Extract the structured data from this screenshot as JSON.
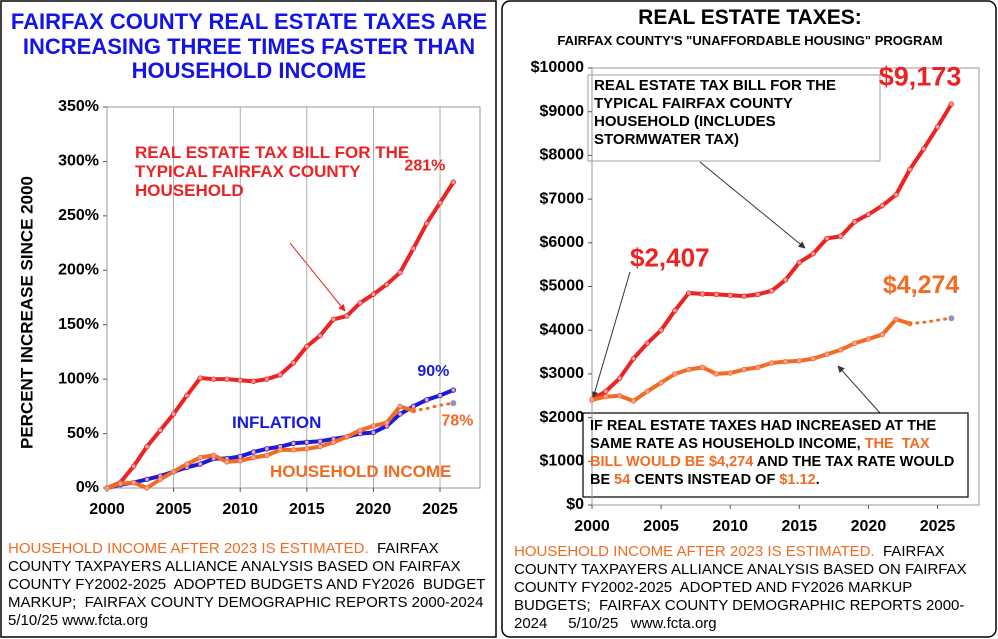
{
  "chart_data": [
    {
      "type": "line",
      "title": "FAIRFAX COUNTY REAL ESTATE TAXES ARE INCREASING THREE TIMES FASTER THAN HOUSEHOLD INCOME",
      "y_label": "PERCENT INCREASE SINCE 2000",
      "x": [
        2000,
        2001,
        2002,
        2003,
        2004,
        2005,
        2006,
        2007,
        2008,
        2009,
        2010,
        2011,
        2012,
        2013,
        2014,
        2015,
        2016,
        2017,
        2018,
        2019,
        2020,
        2021,
        2022,
        2023,
        2024,
        2025,
        2026
      ],
      "xlim": [
        2000,
        2028
      ],
      "xticks": [
        2000,
        2005,
        2010,
        2015,
        2020,
        2025
      ],
      "ylim": [
        0,
        350
      ],
      "yticks": [
        {
          "value": 0,
          "label": "0%"
        },
        {
          "value": 50,
          "label": "50%"
        },
        {
          "value": 100,
          "label": "100%"
        },
        {
          "value": 150,
          "label": "150%"
        },
        {
          "value": 200,
          "label": "200%"
        },
        {
          "value": 250,
          "label": "250%"
        },
        {
          "value": 300,
          "label": "300%"
        },
        {
          "value": 350,
          "label": "350%"
        }
      ],
      "grid": true,
      "series": [
        {
          "name": "REAL ESTATE TAX BILL FOR THE TYPICAL FAIRFAX COUNTY HOUSEHOLD",
          "color": "#ee2222",
          "values": [
            0,
            5,
            20,
            38,
            53,
            68,
            85,
            101,
            100,
            100,
            99,
            98,
            100,
            104,
            115,
            130,
            140,
            155,
            158,
            170,
            178,
            187,
            198,
            220,
            243,
            262,
            281
          ],
          "value_labels": [
            null,
            null,
            null,
            null,
            null,
            null,
            null,
            null,
            null,
            null,
            null,
            null,
            null,
            null,
            null,
            null,
            null,
            null,
            null,
            null,
            null,
            null,
            null,
            null,
            null,
            null,
            "281%"
          ]
        },
        {
          "name": "INFLATION",
          "color": "#1a1adc",
          "values": [
            0,
            3,
            5,
            8,
            11,
            15,
            19,
            22,
            27,
            27,
            29,
            33,
            36,
            38,
            41,
            42,
            43,
            45,
            47,
            50,
            51,
            57,
            68,
            75,
            81,
            85,
            90
          ],
          "value_labels": [
            null,
            null,
            null,
            null,
            null,
            null,
            null,
            null,
            null,
            null,
            null,
            null,
            null,
            null,
            null,
            null,
            null,
            null,
            null,
            null,
            null,
            null,
            null,
            null,
            null,
            null,
            "90%"
          ]
        },
        {
          "name": "HOUSEHOLD INCOME",
          "color": "#f26b21",
          "values": [
            0,
            4,
            5,
            0,
            8,
            15,
            22,
            28,
            30,
            24,
            25,
            28,
            30,
            35,
            35,
            36,
            38,
            42,
            47,
            53,
            57,
            60,
            75,
            71,
            null,
            null,
            null
          ]
        },
        {
          "color": "#f26b21",
          "dash": "dotted",
          "values": [
            null,
            null,
            null,
            null,
            null,
            null,
            null,
            null,
            null,
            null,
            null,
            null,
            null,
            null,
            null,
            null,
            null,
            null,
            null,
            null,
            null,
            null,
            null,
            71,
            73,
            76,
            78
          ],
          "value_labels": [
            null,
            null,
            null,
            null,
            null,
            null,
            null,
            null,
            null,
            null,
            null,
            null,
            null,
            null,
            null,
            null,
            null,
            null,
            null,
            null,
            null,
            null,
            null,
            null,
            null,
            null,
            "78%"
          ]
        }
      ],
      "note": [
        {
          "text": "HOUSEHOLD INCOME AFTER 2023 IS ESTIMATED.",
          "color": "#f26b21"
        },
        {
          "text": "  FAIRFAX COUNTY TAXPAYERS ALLIANCE ANALYSIS BASED ON FAIRFAX COUNTY FY2002-2025  ADOPTED BUDGETS AND FY2026  BUDGET MARKUP;  FAIRFAX COUNTY DEMOGRAPHIC REPORTS 2000-2024    5/10/25 www.fcta.org",
          "color": "#000000"
        }
      ]
    },
    {
      "type": "line",
      "title": "REAL ESTATE TAXES:",
      "subtitle": "FAIRFAX COUNTY'S \"UNAFFORDABLE HOUSING\" PROGRAM",
      "x": [
        2000,
        2001,
        2002,
        2003,
        2004,
        2005,
        2006,
        2007,
        2008,
        2009,
        2010,
        2011,
        2012,
        2013,
        2014,
        2015,
        2016,
        2017,
        2018,
        2019,
        2020,
        2021,
        2022,
        2023,
        2024,
        2025,
        2026
      ],
      "xlim": [
        2000,
        2028
      ],
      "xticks": [
        2000,
        2005,
        2010,
        2015,
        2020,
        2025
      ],
      "ylim": [
        0,
        10000
      ],
      "yticks": [
        {
          "value": 0,
          "label": "$0"
        },
        {
          "value": 1000,
          "label": "$1000"
        },
        {
          "value": 2000,
          "label": "$2000"
        },
        {
          "value": 3000,
          "label": "$3000"
        },
        {
          "value": 4000,
          "label": "$4000"
        },
        {
          "value": 5000,
          "label": "$5000"
        },
        {
          "value": 6000,
          "label": "$6000"
        },
        {
          "value": 7000,
          "label": "$7000"
        },
        {
          "value": 8000,
          "label": "$8000"
        },
        {
          "value": 9000,
          "label": "$9000"
        },
        {
          "value": 10000,
          "label": "$10000"
        }
      ],
      "grid": false,
      "series": [
        {
          "name": "REAL ESTATE TAX BILL FOR THE TYPICAL FAIRFAX COUNTY HOUSEHOLD  (INCLUDES STORMWATER TAX)",
          "color": "#ee2222",
          "values": [
            2407,
            2600,
            2900,
            3350,
            3700,
            4000,
            4450,
            4850,
            4830,
            4820,
            4800,
            4780,
            4820,
            4900,
            5150,
            5550,
            5750,
            6100,
            6150,
            6480,
            6650,
            6850,
            7100,
            7680,
            8150,
            8650,
            9173
          ],
          "value_labels": [
            "$2,407",
            null,
            null,
            null,
            null,
            null,
            null,
            null,
            null,
            null,
            null,
            null,
            null,
            null,
            null,
            null,
            null,
            null,
            null,
            null,
            null,
            null,
            null,
            null,
            null,
            null,
            "$9,173"
          ]
        },
        {
          "color": "#f26b21",
          "values": [
            2407,
            2480,
            2500,
            2380,
            2600,
            2800,
            3000,
            3100,
            3150,
            3000,
            3020,
            3100,
            3150,
            3250,
            3280,
            3300,
            3350,
            3450,
            3550,
            3700,
            3800,
            3900,
            4250,
            4150,
            null,
            null,
            null
          ]
        },
        {
          "color": "#f26b21",
          "dash": "dotted",
          "values": [
            null,
            null,
            null,
            null,
            null,
            null,
            null,
            null,
            null,
            null,
            null,
            null,
            null,
            null,
            null,
            null,
            null,
            null,
            null,
            null,
            null,
            null,
            null,
            4150,
            4180,
            4230,
            4274
          ],
          "value_labels": [
            null,
            null,
            null,
            null,
            null,
            null,
            null,
            null,
            null,
            null,
            null,
            null,
            null,
            null,
            null,
            null,
            null,
            null,
            null,
            null,
            null,
            null,
            null,
            null,
            null,
            null,
            "$4,274"
          ]
        }
      ],
      "annotation": [
        {
          "text": "IF REAL ESTATE TAXES HAD INCREASED AT THE SAME RATE AS HOUSEHOLD INCOME, ",
          "color": "#000000"
        },
        {
          "text": "THE  TAX BILL WOULD BE $4,274",
          "color": "#f26b21"
        },
        {
          "text": " AND THE TAX RATE WOULD BE ",
          "color": "#000000"
        },
        {
          "text": "54",
          "color": "#f26b21"
        },
        {
          "text": " CENTS INSTEAD OF ",
          "color": "#000000"
        },
        {
          "text": "$1.12",
          "color": "#f26b21"
        },
        {
          "text": ".",
          "color": "#000000"
        }
      ],
      "note": [
        {
          "text": "HOUSEHOLD INCOME AFTER 2023 IS ESTIMATED.",
          "color": "#f26b21"
        },
        {
          "text": "  FAIRFAX COUNTY TAXPAYERS ALLIANCE ANALYSIS BASED ON FAIRFAX COUNTY FY2002-2025  ADOPTED AND FY2026 MARKUP BUDGETS;  FAIRFAX COUNTY DEMOGRAPHIC REPORTS 2000-2024     5/10/25   www.fcta.org",
          "color": "#000000"
        }
      ]
    }
  ]
}
